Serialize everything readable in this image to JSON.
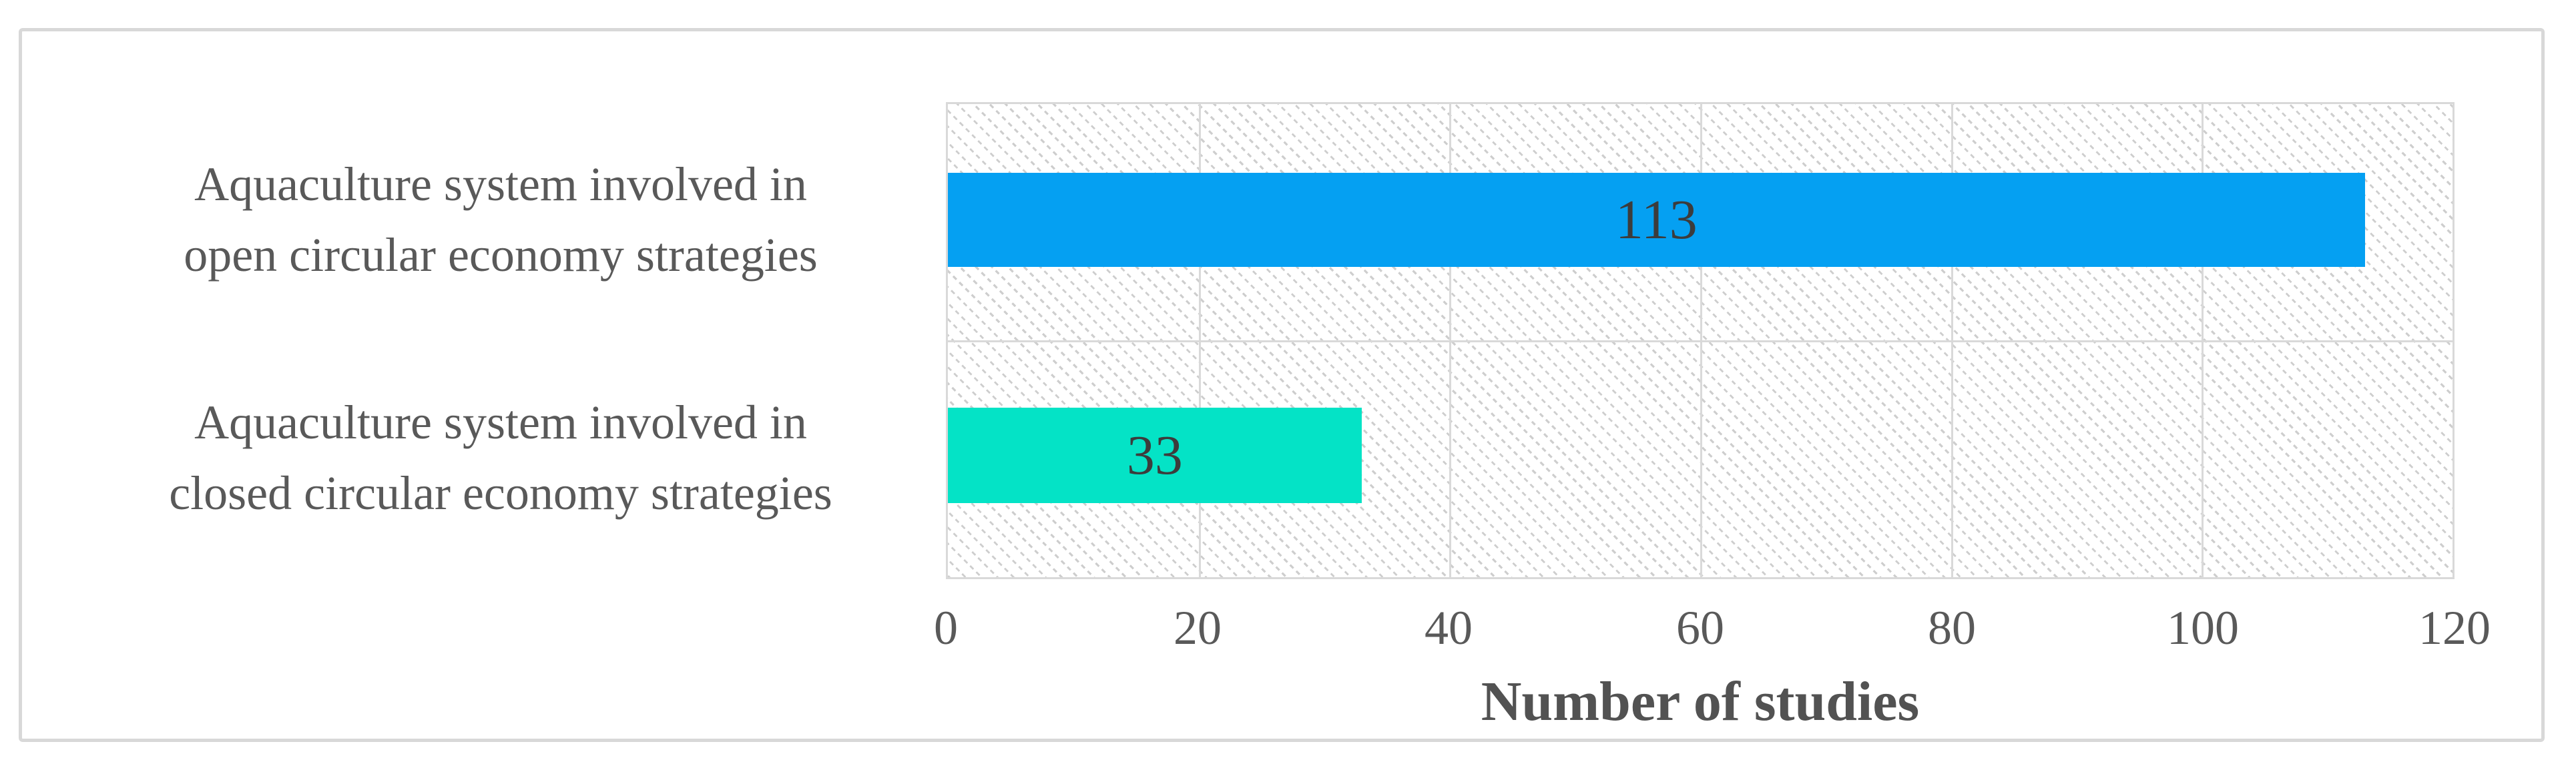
{
  "chart_data": {
    "type": "bar",
    "orientation": "horizontal",
    "title": "",
    "xlabel": "Number of studies",
    "ylabel": "",
    "xlim": [
      0,
      120
    ],
    "xticks": [
      "0",
      "20",
      "40",
      "60",
      "80",
      "100",
      "120"
    ],
    "categories": [
      "Aquaculture system involved in open circular economy strategies",
      "Aquaculture system involved in closed circular economy strategies"
    ],
    "category_lines": [
      [
        "Aquaculture system involved in",
        "open circular economy strategies"
      ],
      [
        "Aquaculture system involved in",
        "closed circular economy strategies"
      ]
    ],
    "values": [
      113,
      33
    ],
    "value_labels": [
      "113",
      "33"
    ],
    "bar_colors": [
      "#05a0f2",
      "#04e3c6"
    ],
    "value_label_position": "center of bar",
    "legend": "none",
    "grid": "vertical major gridlines every 20 units; horizontal separator between category rows",
    "gridline_color": "#d9d9d9",
    "plot_background": "white with light-gray dotted downward-diagonal hatch pattern",
    "text_color": "#595959",
    "frame_border_color": "#d8d8d8"
  }
}
